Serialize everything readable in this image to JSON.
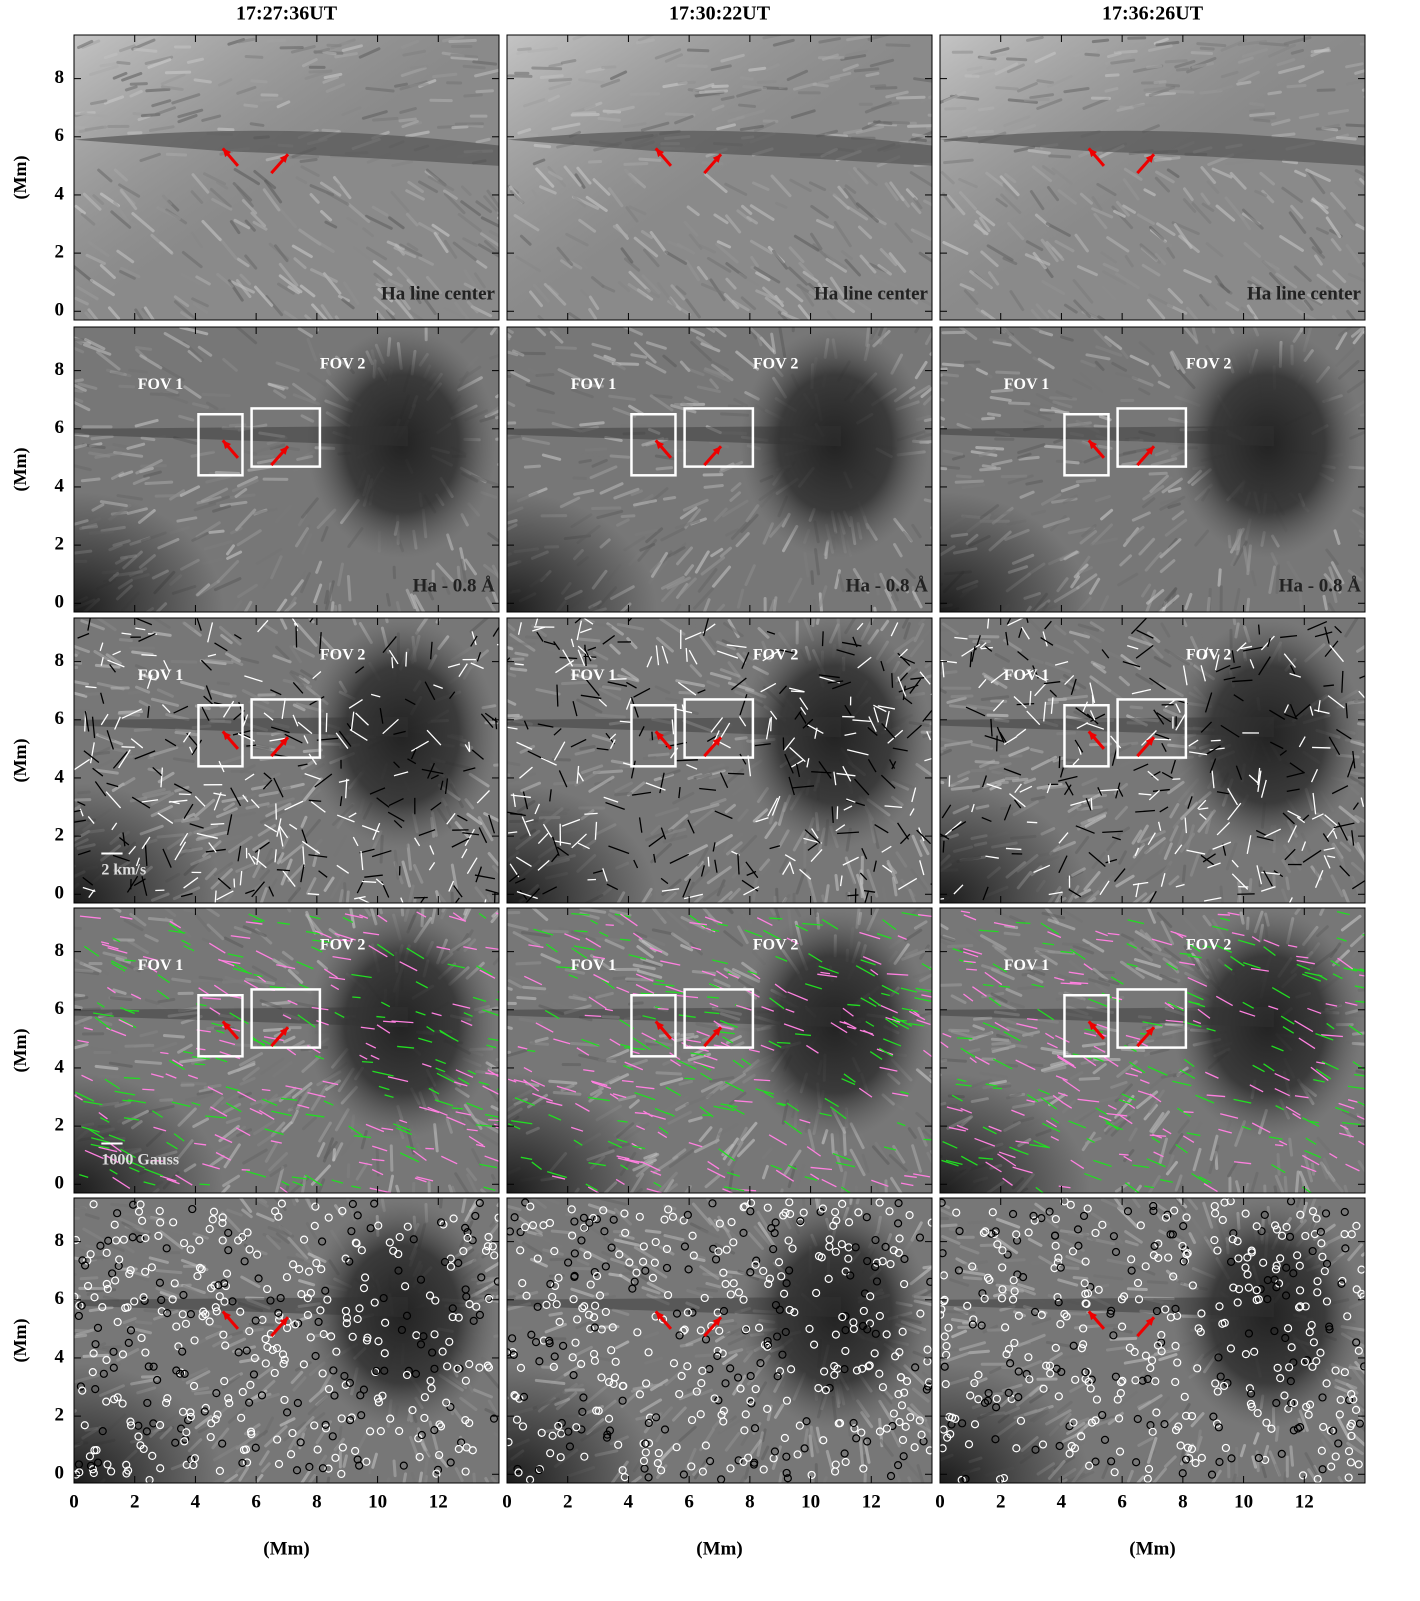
{
  "columns": [
    "17:27:36UT",
    "17:30:22UT",
    "17:36:26UT"
  ],
  "rows": [
    {
      "label": "Ha line center"
    },
    {
      "label": "Ha - 0.8 Å",
      "fov": [
        "FOV 1",
        "FOV 2"
      ]
    },
    {
      "fov": [
        "FOV 1",
        "FOV 2"
      ],
      "scale": "2 km/s"
    },
    {
      "fov": [
        "FOV 1",
        "FOV 2"
      ],
      "scale": "1000 Gauss"
    }
  ],
  "x_axis": {
    "label": "(Mm)",
    "lim": [
      0,
      14
    ],
    "ticks": [
      0,
      2,
      4,
      6,
      8,
      10,
      12
    ]
  },
  "y_axis": {
    "label": "(Mm)",
    "lim": [
      -0.3,
      9.5
    ],
    "ticks": [
      0,
      2,
      4,
      6,
      8
    ]
  }
}
